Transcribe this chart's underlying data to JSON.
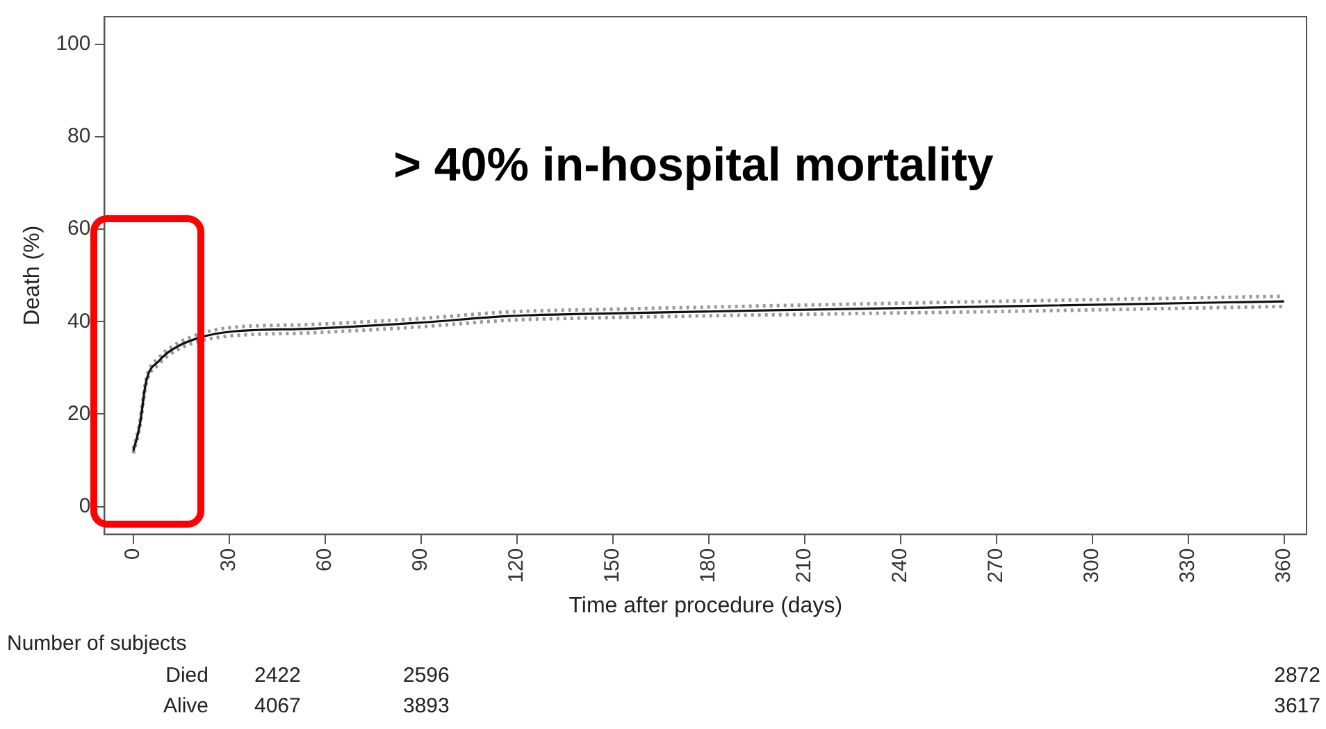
{
  "chart_data": {
    "type": "line",
    "xlabel": "Time after procedure (days)",
    "ylabel": "Death (%)",
    "annotations": [
      "> 40% in-hospital mortality",
      "Number of subjects",
      "Died",
      "2422",
      "2596",
      "2872",
      "Alive",
      "4067",
      "3893",
      "3617"
    ],
    "xlim": [
      -9,
      367
    ],
    "xticks": [
      0,
      30,
      60,
      90,
      120,
      150,
      180,
      210,
      240,
      270,
      300,
      330,
      360
    ],
    "ylim": [
      -6,
      106
    ],
    "yticks": [
      0,
      20,
      40,
      60,
      80,
      100
    ],
    "grid": false,
    "legend": false,
    "marker": "none",
    "line_style": "solid",
    "series": [
      {
        "color": "#111111",
        "x": [
          0,
          2,
          4,
          8,
          14,
          22,
          30,
          56,
          90,
          117,
          150,
          210,
          270,
          360
        ],
        "values": [
          12,
          17.6,
          27,
          31.5,
          34.7,
          36.8,
          37.8,
          38.5,
          39.8,
          41.2,
          41.8,
          42.6,
          43.3,
          44.4
        ]
      },
      {
        "color": "#999999",
        "line_style": "dotted",
        "x": [
          0,
          2,
          4,
          8,
          14,
          22,
          30,
          56,
          90,
          117,
          150,
          210,
          270,
          360
        ],
        "values": [
          11.5,
          17,
          26.4,
          30.8,
          34,
          36,
          36.9,
          37.6,
          38.9,
          40.3,
          40.9,
          41.6,
          42.2,
          43.3
        ]
      },
      {
        "color": "#999999",
        "line_style": "dotted",
        "x": [
          0,
          2,
          4,
          8,
          14,
          22,
          30,
          56,
          90,
          117,
          150,
          210,
          270,
          360
        ],
        "values": [
          12.5,
          18.2,
          27.6,
          32.2,
          35.4,
          37.6,
          38.7,
          39.4,
          40.7,
          42.1,
          42.7,
          43.6,
          44.4,
          45.5
        ]
      }
    ]
  }
}
